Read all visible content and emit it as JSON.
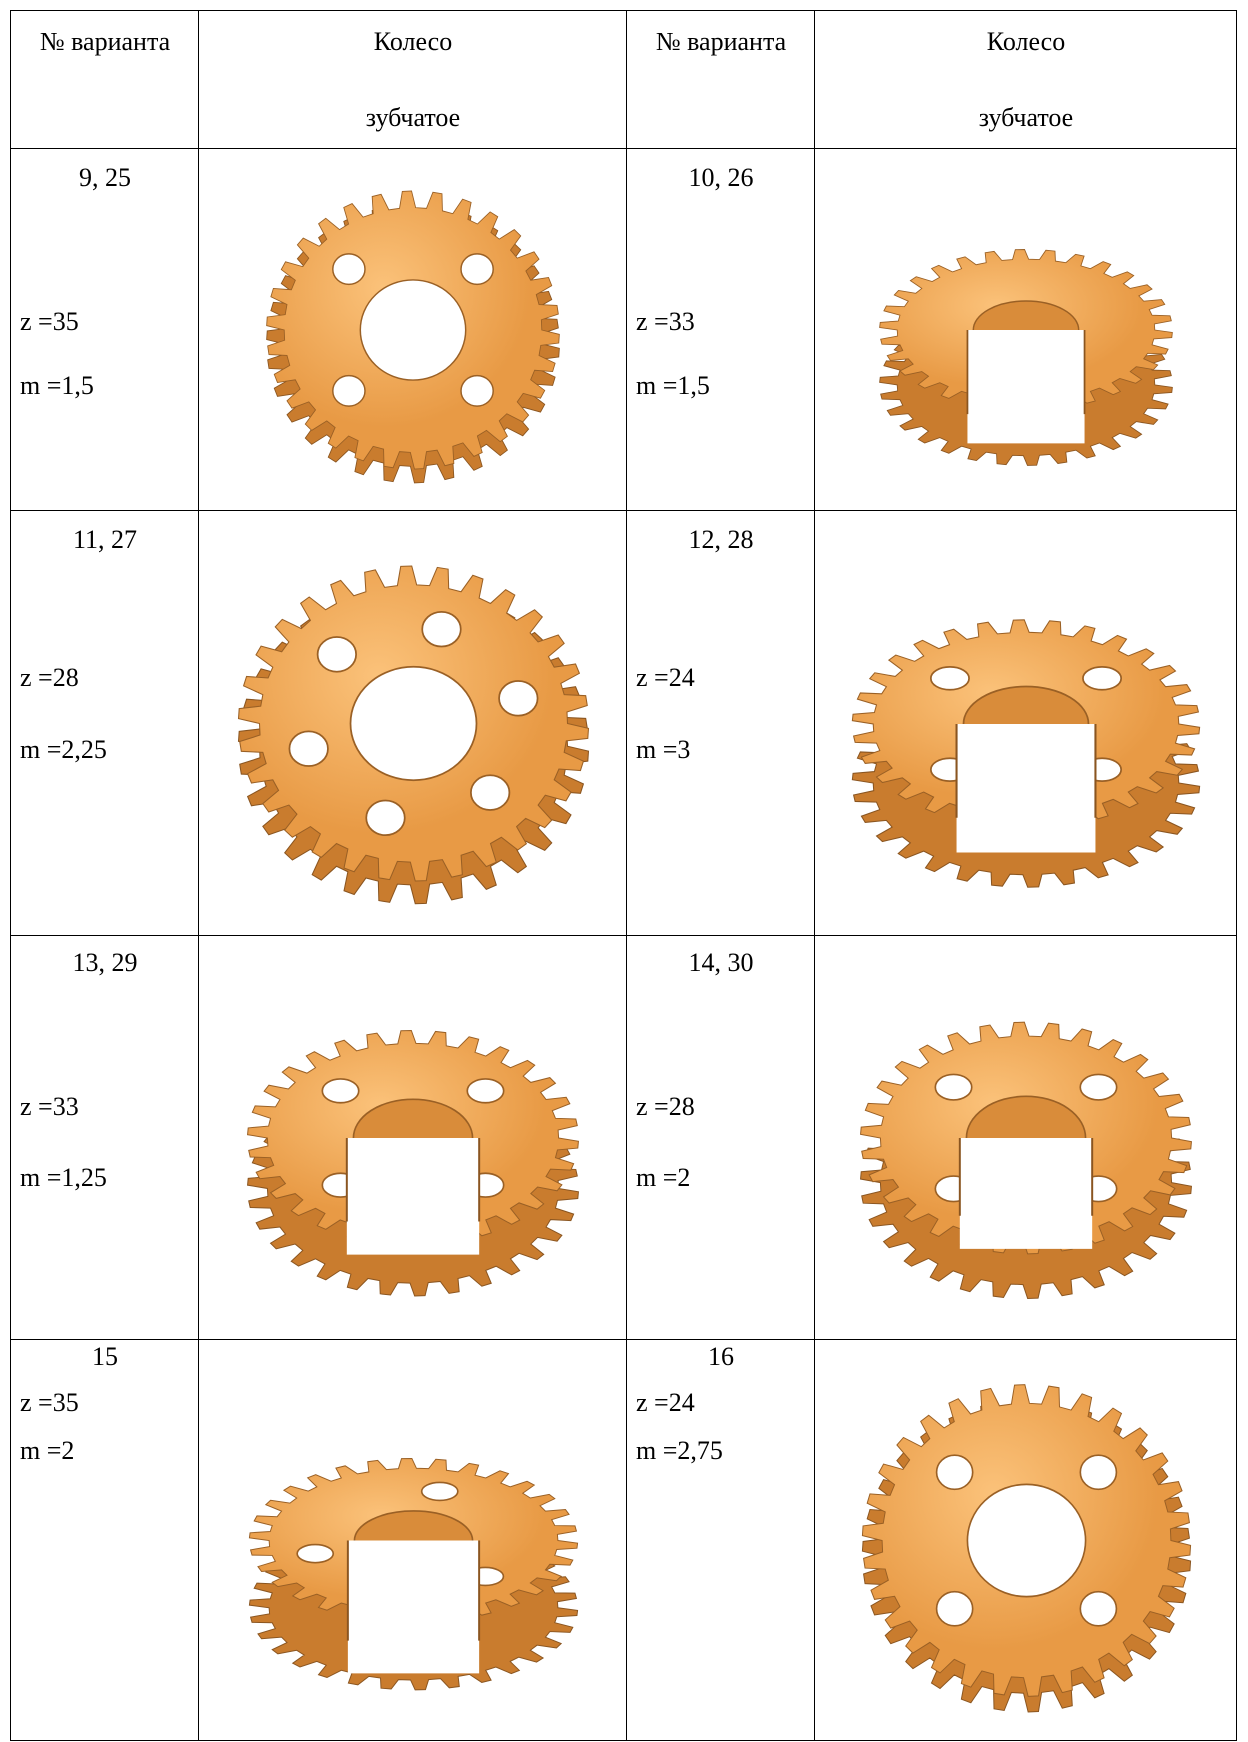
{
  "table": {
    "header": [
      [
        "№ варианта"
      ],
      [
        "Колесо",
        "зубчатое"
      ],
      [
        "№ варианта"
      ],
      [
        "Колесо",
        "зубчатое"
      ]
    ],
    "rows": [
      [
        {
          "variant": "9, 25",
          "z": "z =35",
          "m": "m =1,5"
        },
        {
          "variant": "10, 26",
          "z": "z =33",
          "m": "m =1,5"
        }
      ],
      [
        {
          "variant": "11, 27",
          "z": "z =28",
          "m": "m =2,25"
        },
        {
          "variant": "12, 28",
          "z": "z =24",
          "m": "m =3"
        }
      ],
      [
        {
          "variant": "13, 29",
          "z": "z =33",
          "m": "m =1,25"
        },
        {
          "variant": "14, 30",
          "z": "z =28",
          "m": "m =2"
        }
      ],
      [
        {
          "variant": "15",
          "z": "z =35",
          "m": "m =2"
        },
        {
          "variant": "16",
          "z": "z =24",
          "m": "m =2,75"
        }
      ]
    ]
  }
}
